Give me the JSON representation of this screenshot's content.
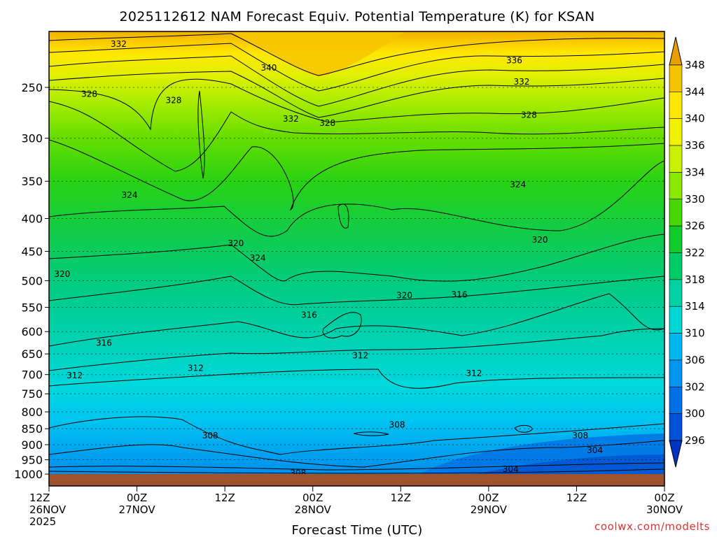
{
  "chart_data": {
    "type": "heatmap",
    "title": "2025112612 NAM Forecast Equiv. Potential Temperature (K) for KSAN",
    "xlabel": "Forecast Time (UTC)",
    "ylabel": "",
    "x_ticks": [
      {
        "line1": "12Z",
        "line2": "26NOV",
        "line3": "2025"
      },
      {
        "line1": "00Z",
        "line2": "27NOV",
        "line3": ""
      },
      {
        "line1": "12Z",
        "line2": "",
        "line3": ""
      },
      {
        "line1": "00Z",
        "line2": "28NOV",
        "line3": ""
      },
      {
        "line1": "12Z",
        "line2": "",
        "line3": ""
      },
      {
        "line1": "00Z",
        "line2": "29NOV",
        "line3": ""
      },
      {
        "line1": "12Z",
        "line2": "",
        "line3": ""
      },
      {
        "line1": "00Z",
        "line2": "30NOV",
        "line3": ""
      }
    ],
    "x_hours": [
      0,
      12,
      24,
      36,
      48,
      60,
      72,
      84
    ],
    "y_levels_hpa": [
      250,
      300,
      350,
      400,
      450,
      500,
      550,
      600,
      650,
      700,
      750,
      800,
      850,
      900,
      950,
      1000
    ],
    "y_range_hpa": [
      200,
      1030
    ],
    "y_scale": "log",
    "grid": "dotted horizontal at pressure levels",
    "colorbar": {
      "labels": [
        "348",
        "344",
        "340",
        "336",
        "334",
        "330",
        "326",
        "322",
        "318",
        "314",
        "310",
        "306",
        "302",
        "300",
        "296"
      ],
      "colors": [
        "#e8a000",
        "#f4c400",
        "#ffe800",
        "#f2f200",
        "#c8f000",
        "#8ce800",
        "#46d800",
        "#0fcc28",
        "#00cc66",
        "#00d2a4",
        "#00d8d8",
        "#00b8f0",
        "#0096f0",
        "#0070e8",
        "#0050d8",
        "#0034c4"
      ]
    },
    "contour_labels": [
      {
        "text": "332",
        "hour": 9.5,
        "hpa": 214
      },
      {
        "text": "340",
        "hour": 30,
        "hpa": 233
      },
      {
        "text": "336",
        "hour": 63.5,
        "hpa": 227
      },
      {
        "text": "332",
        "hour": 64.5,
        "hpa": 245
      },
      {
        "text": "328",
        "hour": 5.5,
        "hpa": 256
      },
      {
        "text": "328",
        "hour": 17,
        "hpa": 262
      },
      {
        "text": "332",
        "hour": 33,
        "hpa": 280
      },
      {
        "text": "328",
        "hour": 38,
        "hpa": 284
      },
      {
        "text": "328",
        "hour": 65.5,
        "hpa": 276
      },
      {
        "text": "324",
        "hour": 11,
        "hpa": 368
      },
      {
        "text": "324",
        "hour": 64,
        "hpa": 354
      },
      {
        "text": "320",
        "hour": 25.5,
        "hpa": 437
      },
      {
        "text": "324",
        "hour": 28.5,
        "hpa": 461
      },
      {
        "text": "320",
        "hour": 67,
        "hpa": 432
      },
      {
        "text": "320",
        "hour": 1.8,
        "hpa": 488
      },
      {
        "text": "320",
        "hour": 48.5,
        "hpa": 527
      },
      {
        "text": "316",
        "hour": 56,
        "hpa": 526
      },
      {
        "text": "316",
        "hour": 35.5,
        "hpa": 565
      },
      {
        "text": "316",
        "hour": 7.5,
        "hpa": 625
      },
      {
        "text": "312",
        "hour": 42.5,
        "hpa": 654
      },
      {
        "text": "312",
        "hour": 20,
        "hpa": 684
      },
      {
        "text": "312",
        "hour": 3.5,
        "hpa": 702
      },
      {
        "text": "312",
        "hour": 58,
        "hpa": 697
      },
      {
        "text": "308",
        "hour": 22,
        "hpa": 871
      },
      {
        "text": "308",
        "hour": 47.5,
        "hpa": 838
      },
      {
        "text": "308",
        "hour": 72.5,
        "hpa": 871
      },
      {
        "text": "304",
        "hour": 74.5,
        "hpa": 918
      },
      {
        "text": "308",
        "hour": 34,
        "hpa": 996
      },
      {
        "text": "304",
        "hour": 63,
        "hpa": 982
      }
    ]
  },
  "credit": "coolwx.com/modelts",
  "colors": {
    "ground": "#a0522d",
    "credit": "#e03030",
    "plot_border": "#000000"
  }
}
